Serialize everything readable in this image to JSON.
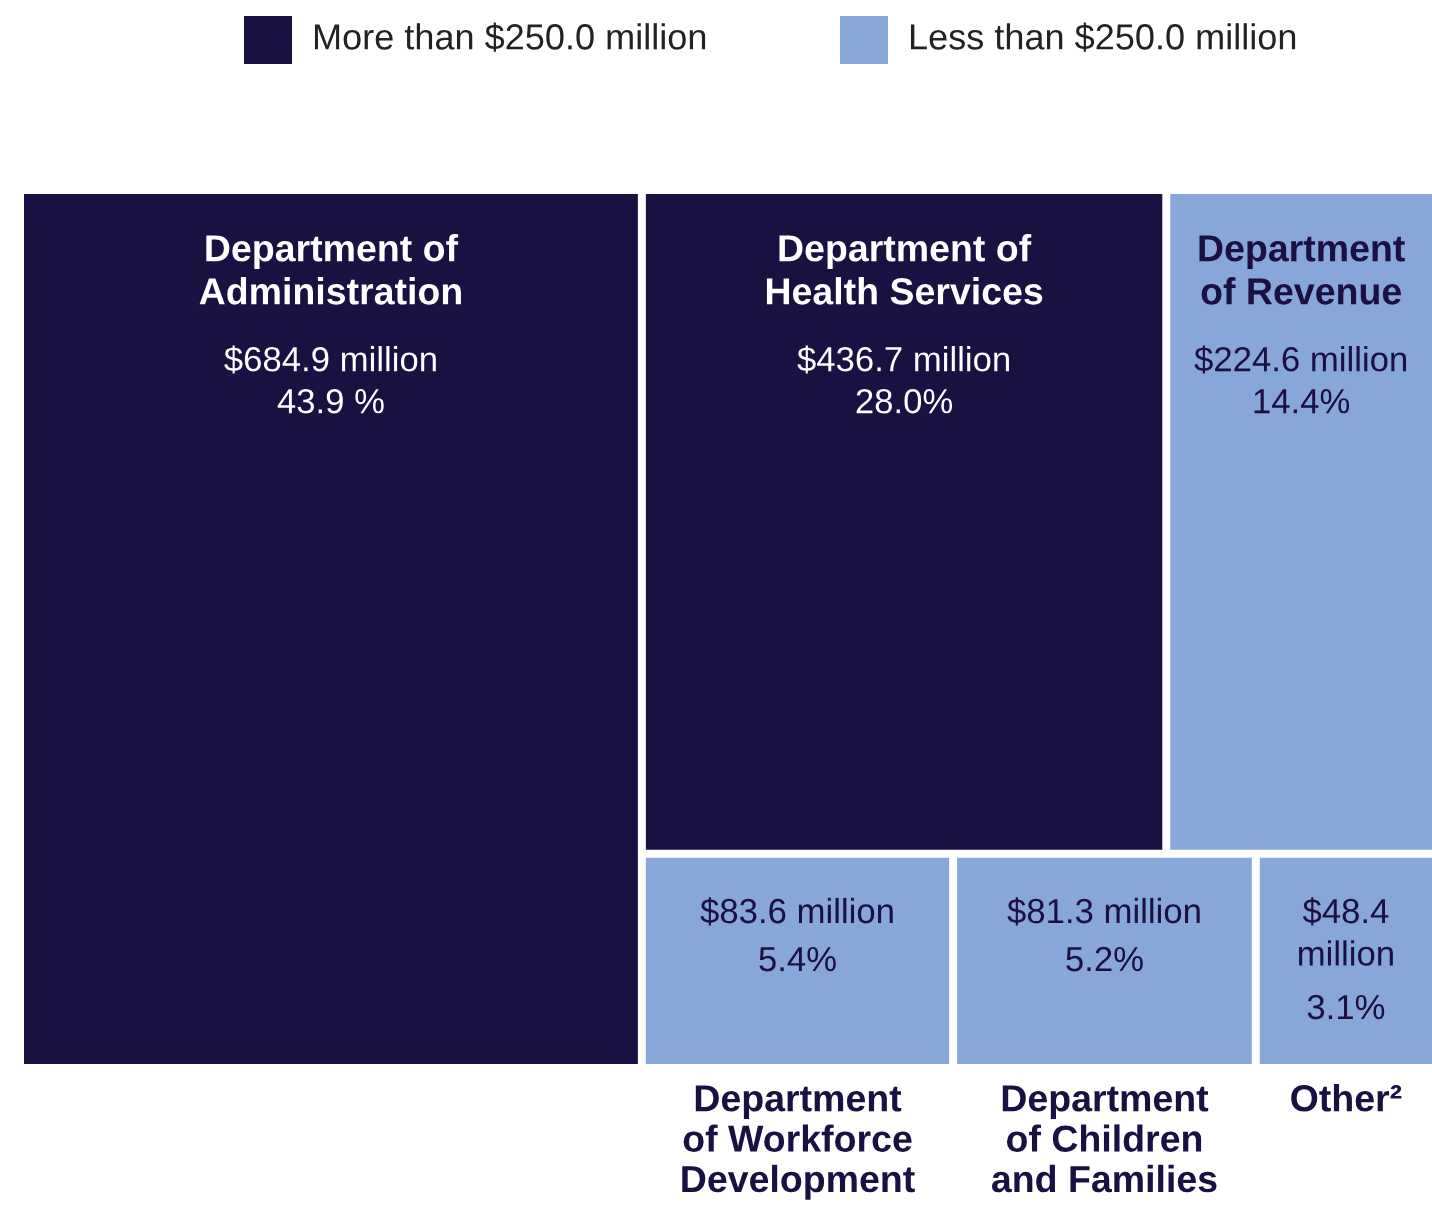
{
  "chart_data": {
    "type": "other",
    "legend": "top",
    "categories": [
      "Department of\nAdministration",
      "Department of\nHealth Services",
      "Department\nof Revenue",
      "Department\nof Workforce\nDevelopment",
      "Department\nof Children\nand Families",
      "Other²"
    ],
    "series": [
      {
        "name": "More than $250.0 million",
        "color": "#1b1042",
        "values": [
          684.9,
          436.7,
          null,
          null,
          null,
          null
        ],
        "value_labels": [
          "$684.9 million",
          "$436.7 million",
          null,
          null,
          null,
          null
        ]
      },
      {
        "name": "Less than $250.0 million",
        "color": "#87a7d8",
        "values": [
          null,
          null,
          224.6,
          83.6,
          81.3,
          48.4
        ],
        "value_labels": [
          null,
          null,
          "$224.6 million",
          "$83.6 million",
          "$81.3 million",
          "$48.4 million"
        ]
      }
    ],
    "annotations": [
      {
        "text": "43.9 %",
        "x": "Department of\nAdministration"
      },
      {
        "text": "28.0%",
        "x": "Department of\nHealth Services"
      },
      {
        "text": "14.4%",
        "x": "Department\nof Revenue"
      },
      {
        "text": "5.4%",
        "x": "Department\nof Workforce\nDevelopment"
      },
      {
        "text": "5.2%",
        "x": "Department\nof Children\nand Families"
      },
      {
        "text": "3.1%",
        "x": "Other²"
      }
    ]
  }
}
